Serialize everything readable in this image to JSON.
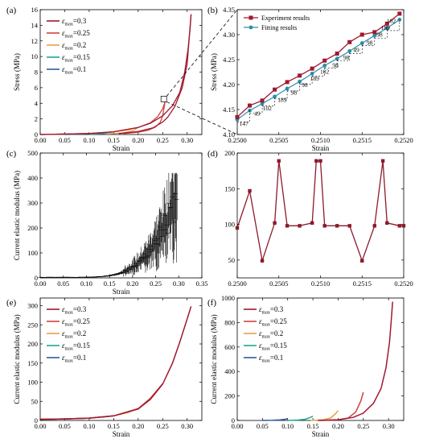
{
  "colors": {
    "e03": "#a0182f",
    "e025": "#d0423f",
    "e02": "#e8a045",
    "e015": "#1aa79c",
    "e01": "#2e5c9e",
    "exp": "#a0182f",
    "fit": "#2a8fa8",
    "modulus": "#8b1a2b",
    "black": "#000000"
  },
  "legend_strain": [
    {
      "eps": "ε",
      "sub": "max",
      "val": "=0.3"
    },
    {
      "eps": "ε",
      "sub": "max",
      "val": "=0.25"
    },
    {
      "eps": "ε",
      "sub": "max",
      "val": "=0.2"
    },
    {
      "eps": "ε",
      "sub": "max",
      "val": "=0.15"
    },
    {
      "eps": "ε",
      "sub": "max",
      "val": "=0.1"
    }
  ],
  "chart_data": [
    {
      "panel": "(a)",
      "type": "line",
      "xlabel": "Strain",
      "ylabel": "Stress (MPa)",
      "xlim": [
        0.0,
        0.33
      ],
      "ylim": [
        0,
        16
      ],
      "xticks": [
        "0.00",
        "0.05",
        "0.10",
        "0.15",
        "0.20",
        "0.25",
        "0.30"
      ],
      "yticks": [
        "0",
        "2",
        "4",
        "6",
        "8",
        "10",
        "12",
        "14",
        "16"
      ],
      "legend_position": "top-left",
      "series": [
        {
          "name": "εmax=0.3",
          "loading": [
            [
              0,
              0
            ],
            [
              0.1,
              0.12
            ],
            [
              0.15,
              0.35
            ],
            [
              0.2,
              0.9
            ],
            [
              0.225,
              1.45
            ],
            [
              0.25,
              2.4
            ],
            [
              0.27,
              3.7
            ],
            [
              0.285,
              5.4
            ],
            [
              0.295,
              8.0
            ],
            [
              0.302,
              11.0
            ],
            [
              0.306,
              13.6
            ],
            [
              0.308,
              15.4
            ]
          ],
          "unloading": [
            [
              0.308,
              15.4
            ],
            [
              0.3,
              9.0
            ],
            [
              0.29,
              6.0
            ],
            [
              0.275,
              3.6
            ],
            [
              0.26,
              2.2
            ],
            [
              0.25,
              1.6
            ],
            [
              0.23,
              0.85
            ],
            [
              0.2,
              0.38
            ],
            [
              0.16,
              0.12
            ]
          ]
        },
        {
          "name": "εmax=0.25",
          "loading": [
            [
              0,
              0
            ],
            [
              0.1,
              0.12
            ],
            [
              0.15,
              0.35
            ],
            [
              0.2,
              0.9
            ],
            [
              0.225,
              1.5
            ],
            [
              0.24,
              2.3
            ],
            [
              0.25,
              3.3
            ],
            [
              0.255,
              4.2
            ]
          ],
          "unloading": [
            [
              0.255,
              4.2
            ],
            [
              0.25,
              2.4
            ],
            [
              0.245,
              1.55
            ],
            [
              0.235,
              0.95
            ],
            [
              0.22,
              0.55
            ],
            [
              0.2,
              0.3
            ],
            [
              0.17,
              0.12
            ]
          ]
        },
        {
          "name": "εmax=0.2",
          "loading": [
            [
              0,
              0
            ],
            [
              0.1,
              0.12
            ],
            [
              0.15,
              0.35
            ],
            [
              0.18,
              0.6
            ],
            [
              0.2,
              0.9
            ]
          ],
          "unloading": [
            [
              0.2,
              0.9
            ],
            [
              0.19,
              0.5
            ],
            [
              0.17,
              0.22
            ],
            [
              0.14,
              0.08
            ]
          ]
        },
        {
          "name": "εmax=0.15",
          "loading": [
            [
              0,
              0
            ],
            [
              0.1,
              0.12
            ],
            [
              0.13,
              0.22
            ],
            [
              0.15,
              0.35
            ]
          ],
          "unloading": [
            [
              0.15,
              0.35
            ],
            [
              0.13,
              0.12
            ],
            [
              0.1,
              0.03
            ]
          ]
        },
        {
          "name": "εmax=0.1",
          "loading": [
            [
              0,
              0
            ],
            [
              0.05,
              0.04
            ],
            [
              0.1,
              0.12
            ]
          ],
          "unloading": [
            [
              0.1,
              0.12
            ],
            [
              0.08,
              0.03
            ],
            [
              0.05,
              0.0
            ]
          ]
        }
      ],
      "annotation": "zoom box at strain 0.2510–0.2520, stress 4.10–4.35"
    },
    {
      "panel": "(b)",
      "type": "line",
      "xlabel": "Strain",
      "ylabel": "Stress (MPa)",
      "xlim": [
        0.25,
        0.252
      ],
      "ylim": [
        4.1,
        4.35
      ],
      "xticks": [
        "0.2500",
        "0.2505",
        "0.2510",
        "0.2515",
        "0.2520"
      ],
      "yticks": [
        "4.10",
        "4.15",
        "4.20",
        "4.25",
        "4.30",
        "4.35"
      ],
      "legend_position": "top-left",
      "series": [
        {
          "name": "Experiment results",
          "x": [
            0.25,
            0.25015,
            0.2503,
            0.25045,
            0.2506,
            0.25075,
            0.2509,
            0.25105,
            0.2512,
            0.25135,
            0.2515,
            0.25165,
            0.2518,
            0.25195
          ],
          "y": [
            4.135,
            4.158,
            4.168,
            4.19,
            4.205,
            4.218,
            4.232,
            4.248,
            4.262,
            4.285,
            4.3,
            4.305,
            4.322,
            4.342
          ]
        },
        {
          "name": "Fitting results",
          "x": [
            0.25,
            0.25015,
            0.2503,
            0.25045,
            0.2506,
            0.25075,
            0.2509,
            0.25105,
            0.2512,
            0.25135,
            0.2515,
            0.25165,
            0.2518,
            0.25195
          ],
          "y": [
            4.13,
            4.148,
            4.162,
            4.176,
            4.192,
            4.206,
            4.222,
            4.238,
            4.252,
            4.267,
            4.283,
            4.298,
            4.313,
            4.33
          ]
        }
      ],
      "step_labels": [
        {
          "x": 0.25008,
          "y": 4.118,
          "text": "147"
        },
        {
          "x": 0.25024,
          "y": 4.138,
          "text": "49"
        },
        {
          "x": 0.25036,
          "y": 4.148,
          "text": "102"
        },
        {
          "x": 0.25054,
          "y": 4.165,
          "text": "189"
        },
        {
          "x": 0.25068,
          "y": 4.18,
          "text": "98"
        },
        {
          "x": 0.25081,
          "y": 4.195,
          "text": "98"
        },
        {
          "x": 0.25093,
          "y": 4.208,
          "text": "189"
        },
        {
          "x": 0.25105,
          "y": 4.222,
          "text": "102"
        },
        {
          "x": 0.25118,
          "y": 4.235,
          "text": "98"
        },
        {
          "x": 0.25131,
          "y": 4.25,
          "text": "98"
        },
        {
          "x": 0.25143,
          "y": 4.265,
          "text": "49"
        },
        {
          "x": 0.25159,
          "y": 4.28,
          "text": "98"
        },
        {
          "x": 0.25171,
          "y": 4.296,
          "text": "98"
        },
        {
          "x": 0.25178,
          "y": 4.31,
          "text": "189"
        },
        {
          "x": 0.25185,
          "y": 4.323,
          "text": "102"
        }
      ]
    },
    {
      "panel": "(c)",
      "type": "scatter",
      "xlabel": "Strain",
      "ylabel": "Current elastic modulus (MPa)",
      "xlim": [
        0.0,
        0.35
      ],
      "ylim": [
        0,
        500
      ],
      "xticks": [
        "0.00",
        "0.05",
        "0.10",
        "0.15",
        "0.20",
        "0.25",
        "0.30",
        "0.35"
      ],
      "yticks": [
        "0",
        "100",
        "200",
        "300",
        "400",
        "500"
      ],
      "note": "dense noisy points with vertical spikes rising from ~0 to ~400 MPa near strain 0.29"
    },
    {
      "panel": "(d)",
      "type": "line",
      "xlabel": "",
      "ylabel": "",
      "xlim": [
        0.25,
        0.252
      ],
      "ylim": [
        25,
        200
      ],
      "xticks": [
        "0.2500",
        "0.2505",
        "0.2510",
        "0.2515",
        "0.2520"
      ],
      "yticks": [
        "50",
        "100",
        "150",
        "200"
      ],
      "x": [
        0.25,
        0.25015,
        0.2503,
        0.25045,
        0.2505,
        0.2506,
        0.25075,
        0.2509,
        0.25095,
        0.251,
        0.25105,
        0.2512,
        0.25135,
        0.2515,
        0.25165,
        0.25175,
        0.2518,
        0.25195,
        0.252
      ],
      "y": [
        95,
        147,
        49,
        102,
        189,
        98,
        98,
        102,
        189,
        189,
        98,
        98,
        98,
        49,
        98,
        189,
        102,
        98,
        98
      ]
    },
    {
      "panel": "(e)",
      "type": "line",
      "xlabel": "Strain",
      "ylabel": "Current elastic modulus (MPa)",
      "xlim": [
        0.0,
        0.33
      ],
      "ylim": [
        0,
        320
      ],
      "xticks": [
        "0.00",
        "0.05",
        "0.10",
        "0.15",
        "0.20",
        "0.25",
        "0.30"
      ],
      "yticks": [
        "0",
        "50",
        "100",
        "150",
        "200",
        "250",
        "300"
      ],
      "legend_position": "top-left",
      "series": [
        {
          "name": "εmax=0.3",
          "x": [
            0,
            0.05,
            0.1,
            0.15,
            0.2,
            0.225,
            0.25,
            0.27,
            0.285,
            0.3,
            0.308
          ],
          "y": [
            3,
            4,
            6,
            12,
            30,
            55,
            95,
            150,
            205,
            265,
            298
          ]
        },
        {
          "name": "εmax=0.25",
          "x": [
            0,
            0.05,
            0.1,
            0.15,
            0.2,
            0.225,
            0.25
          ],
          "y": [
            3,
            4,
            6,
            12,
            31,
            58,
            96
          ]
        },
        {
          "name": "εmax=0.2",
          "x": [
            0,
            0.05,
            0.1,
            0.15,
            0.18,
            0.2
          ],
          "y": [
            3,
            4,
            6,
            12,
            21,
            32
          ]
        },
        {
          "name": "εmax=0.15",
          "x": [
            0,
            0.05,
            0.1,
            0.13,
            0.15
          ],
          "y": [
            3,
            4,
            6,
            9,
            12
          ]
        },
        {
          "name": "εmax=0.1",
          "x": [
            0,
            0.05,
            0.1
          ],
          "y": [
            3,
            4,
            6
          ]
        }
      ]
    },
    {
      "panel": "(f)",
      "type": "line",
      "xlabel": "Strain",
      "ylabel": "Current elastic modulus (MPa)",
      "xlim": [
        0.0,
        0.33
      ],
      "ylim": [
        0,
        1000
      ],
      "xticks": [
        "0.00",
        "0.05",
        "0.10",
        "0.15",
        "0.20",
        "0.25",
        "0.30"
      ],
      "yticks": [
        "0",
        "200",
        "400",
        "600",
        "800",
        "1000"
      ],
      "legend_position": "top-left",
      "series": [
        {
          "name": "εmax=0.3",
          "x": [
            0.16,
            0.2,
            0.23,
            0.25,
            0.27,
            0.285,
            0.295,
            0.302,
            0.306,
            0.308
          ],
          "y": [
            0,
            6,
            25,
            60,
            140,
            260,
            430,
            640,
            850,
            970
          ]
        },
        {
          "name": "εmax=0.25",
          "x": [
            0.165,
            0.2,
            0.22,
            0.235,
            0.245,
            0.25
          ],
          "y": [
            0,
            5,
            20,
            70,
            160,
            230
          ]
        },
        {
          "name": "εmax=0.2",
          "x": [
            0.145,
            0.17,
            0.185,
            0.195,
            0.2
          ],
          "y": [
            0,
            5,
            20,
            55,
            80
          ]
        },
        {
          "name": "εmax=0.15",
          "x": [
            0.1,
            0.12,
            0.135,
            0.145,
            0.15
          ],
          "y": [
            0,
            3,
            10,
            25,
            35
          ]
        },
        {
          "name": "εmax=0.1",
          "x": [
            0.05,
            0.07,
            0.085,
            0.095,
            0.1
          ],
          "y": [
            0,
            2,
            5,
            10,
            15
          ]
        }
      ]
    }
  ],
  "panel_text": {
    "a": {
      "tag": "(a)",
      "xlabel": "Strain",
      "ylabel": "Stress (MPa)"
    },
    "b": {
      "tag": "(b)",
      "xlabel": "Strain",
      "ylabel": "Stress (MPa)",
      "legend_exp": "Experiment results",
      "legend_fit": "Fitting results"
    },
    "c": {
      "tag": "(c)",
      "xlabel": "Strain",
      "ylabel": "Current elastic modulus (MPa)"
    },
    "d": {
      "tag": "(d)"
    },
    "e": {
      "tag": "(e)",
      "xlabel": "Strain",
      "ylabel": "Current elastic modulus (MPa)"
    },
    "f": {
      "tag": "(f)",
      "xlabel": "Strain",
      "ylabel": "Current elastic modulus (MPa)"
    }
  }
}
